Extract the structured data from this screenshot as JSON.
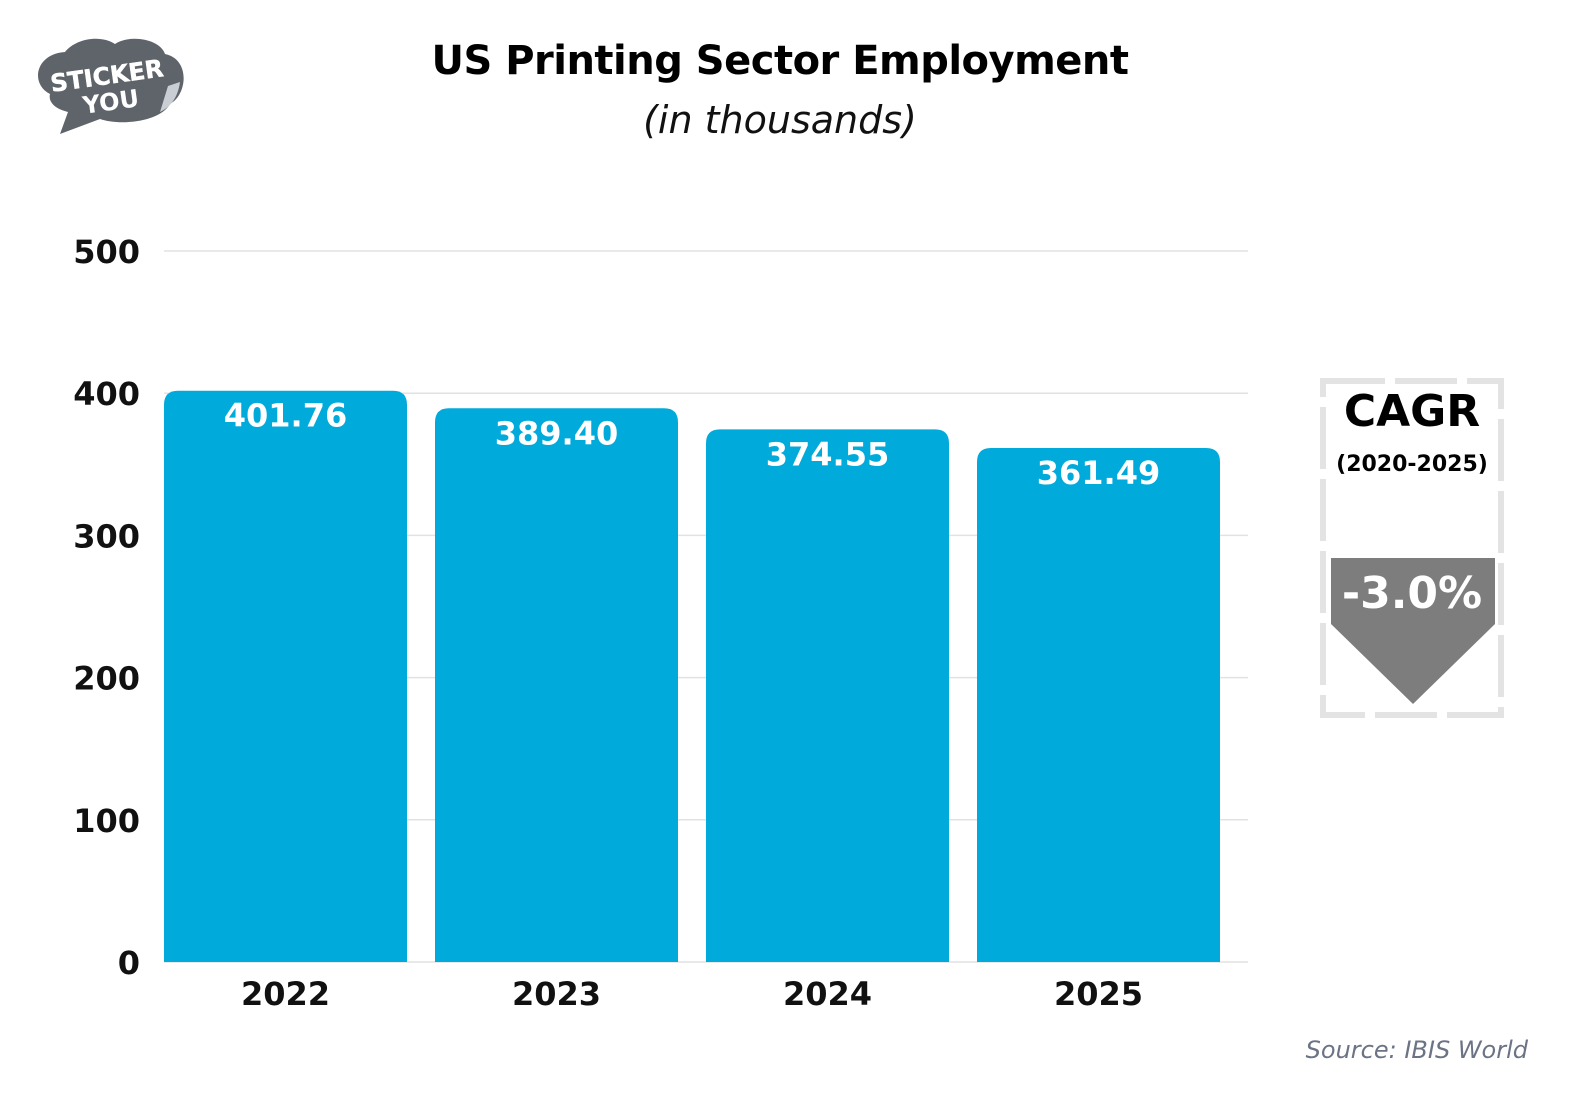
{
  "chart_data": {
    "type": "bar",
    "title": "US Printing Sector Employment",
    "subtitle": "(in thousands)",
    "categories": [
      "2022",
      "2023",
      "2024",
      "2025"
    ],
    "values": [
      401.76,
      389.4,
      374.55,
      361.49
    ],
    "value_labels": [
      "401.76",
      "389.40",
      "374.55",
      "361.49"
    ],
    "xlabel": "",
    "ylabel": "",
    "ylim": [
      0,
      500
    ],
    "yticks": [
      0,
      100,
      200,
      300,
      400,
      500
    ],
    "grid": true,
    "bar_color": "#00aadb"
  },
  "logo": {
    "line1": "STICKER",
    "line2": "YOU"
  },
  "cagr": {
    "label": "CAGR",
    "period": "(2020-2025)",
    "value": "-3.0%",
    "arrow_color": "#7d7d7d",
    "direction": "down"
  },
  "source": "Source: IBIS World"
}
